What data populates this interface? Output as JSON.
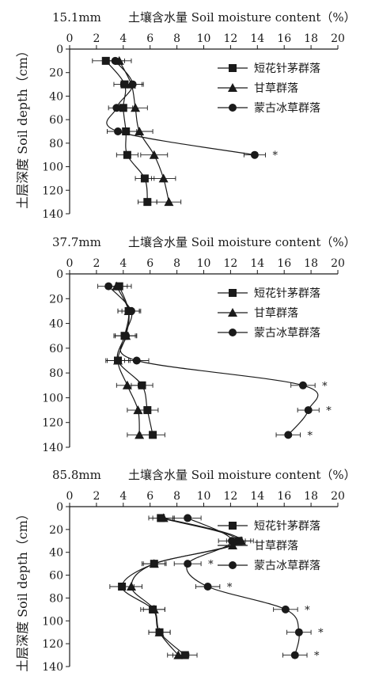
{
  "figure": {
    "y_axis_label": "土层深度 Soil depth（cm）",
    "x_axis_label": "土壤含水量 Soil moisture content（%）"
  },
  "chart_data": [
    {
      "type": "line",
      "title": "15.1mm",
      "xlabel": "土壤含水量 Soil moisture content（%）",
      "ylabel": "土层深度 Soil depth（cm）",
      "xlim": [
        0,
        20
      ],
      "ylim": [
        0,
        140
      ],
      "x_ticks": [
        "0",
        "2",
        "4",
        "6",
        "8",
        "10",
        "12",
        "14",
        "16",
        "18",
        "20"
      ],
      "y_ticks": [
        "0",
        "20",
        "40",
        "60",
        "80",
        "100",
        "120",
        "140"
      ],
      "y_reversed": true,
      "legend_position": "top-right",
      "series": [
        {
          "name": "短花针茅群落",
          "marker": "square",
          "points": [
            [
              2.7,
              10
            ],
            [
              4.1,
              30
            ],
            [
              4.0,
              50
            ],
            [
              4.2,
              70
            ],
            [
              4.3,
              90
            ],
            [
              5.6,
              110
            ],
            [
              5.8,
              130
            ]
          ],
          "errors": [
            1.0,
            0.8,
            0.7,
            0.8,
            0.8,
            0.7,
            0.7
          ]
        },
        {
          "name": "甘草群落",
          "marker": "triangle",
          "points": [
            [
              3.7,
              10
            ],
            [
              4.6,
              30
            ],
            [
              4.9,
              50
            ],
            [
              5.2,
              70
            ],
            [
              6.3,
              90
            ],
            [
              7.0,
              110
            ],
            [
              7.4,
              130
            ]
          ],
          "errors": [
            0.9,
            0.8,
            0.9,
            1.0,
            1.0,
            0.9,
            0.9
          ]
        },
        {
          "name": "蒙古冰草群落",
          "marker": "circle",
          "points": [
            [
              3.4,
              10
            ],
            [
              4.7,
              30
            ],
            [
              3.5,
              50
            ],
            [
              3.6,
              70
            ],
            [
              13.8,
              90
            ]
          ],
          "errors": [
            0.7,
            0.8,
            0.6,
            0.8,
            0.8
          ],
          "significance": [
            "",
            "",
            "",
            "",
            "*"
          ]
        }
      ]
    },
    {
      "type": "line",
      "title": "37.7mm",
      "xlabel": "土壤含水量 Soil moisture content（%）",
      "ylabel": "土层深度 Soil depth（cm）",
      "xlim": [
        0,
        20
      ],
      "ylim": [
        0,
        140
      ],
      "x_ticks": [
        "0",
        "2",
        "4",
        "6",
        "8",
        "10",
        "12",
        "14",
        "16",
        "18",
        "20"
      ],
      "y_ticks": [
        "0",
        "20",
        "40",
        "60",
        "80",
        "100",
        "120",
        "140"
      ],
      "y_reversed": true,
      "legend_position": "top-right",
      "series": [
        {
          "name": "短花针茅群落",
          "marker": "square",
          "points": [
            [
              3.7,
              10
            ],
            [
              4.4,
              30
            ],
            [
              4.1,
              50
            ],
            [
              3.6,
              70
            ],
            [
              5.4,
              90
            ],
            [
              5.8,
              110
            ],
            [
              6.2,
              130
            ]
          ],
          "errors": [
            0.9,
            0.8,
            0.8,
            0.9,
            0.8,
            0.8,
            0.9
          ]
        },
        {
          "name": "甘草群落",
          "marker": "triangle",
          "points": [
            [
              3.5,
              10
            ],
            [
              4.4,
              30
            ],
            [
              4.2,
              50
            ],
            [
              3.6,
              70
            ],
            [
              4.3,
              90
            ],
            [
              5.1,
              110
            ],
            [
              5.2,
              130
            ]
          ],
          "errors": [
            0.8,
            0.8,
            0.8,
            0.8,
            0.8,
            0.8,
            0.9
          ]
        },
        {
          "name": "蒙古冰草群落",
          "marker": "circle",
          "points": [
            [
              2.9,
              10
            ],
            [
              4.6,
              30
            ],
            [
              4.2,
              50
            ],
            [
              5.0,
              70
            ],
            [
              17.4,
              90
            ],
            [
              17.8,
              110
            ],
            [
              16.3,
              130
            ]
          ],
          "errors": [
            0.8,
            0.7,
            0.8,
            0.9,
            0.9,
            0.8,
            0.9
          ],
          "significance": [
            "",
            "",
            "",
            "",
            "*",
            "*",
            "*"
          ]
        }
      ]
    },
    {
      "type": "line",
      "title": "85.8mm",
      "xlabel": "土壤含水量 Soil moisture content（%）",
      "ylabel": "土层深度 Soil depth（cm）",
      "xlim": [
        0,
        20
      ],
      "ylim": [
        0,
        140
      ],
      "x_ticks": [
        "0",
        "2",
        "4",
        "6",
        "8",
        "10",
        "12",
        "14",
        "16",
        "18",
        "20"
      ],
      "y_ticks": [
        "0",
        "20",
        "40",
        "60",
        "80",
        "100",
        "120",
        "140"
      ],
      "y_reversed": true,
      "legend_position": "top-right",
      "series": [
        {
          "name": "短花针茅群落",
          "marker": "square",
          "points": [
            [
              6.8,
              10
            ],
            [
              12.6,
              30
            ],
            [
              6.3,
              50
            ],
            [
              3.9,
              70
            ],
            [
              6.2,
              90
            ],
            [
              6.7,
              110
            ],
            [
              8.6,
              130
            ]
          ],
          "errors": [
            0.9,
            0.9,
            0.9,
            0.9,
            0.9,
            0.8,
            0.9
          ]
        },
        {
          "name": "甘草群落",
          "marker": "triangle",
          "points": [
            [
              7.0,
              10
            ],
            [
              12.8,
              30
            ],
            [
              6.3,
              50
            ],
            [
              4.6,
              70
            ],
            [
              6.3,
              90
            ],
            [
              6.7,
              110
            ],
            [
              8.1,
              130
            ]
          ],
          "errors": [
            0.8,
            0.9,
            0.8,
            0.8,
            0.8,
            0.8,
            0.8
          ]
        },
        {
          "name": "蒙古冰草群落",
          "marker": "circle",
          "points": [
            [
              8.8,
              10
            ],
            [
              12.1,
              30
            ],
            [
              8.8,
              50
            ],
            [
              10.3,
              70
            ],
            [
              16.1,
              90
            ],
            [
              17.1,
              110
            ],
            [
              16.8,
              130
            ]
          ],
          "errors": [
            1.0,
            1.0,
            1.0,
            0.9,
            0.9,
            0.9,
            0.9
          ],
          "significance": [
            "",
            "",
            "*",
            "*",
            "*",
            "*",
            "*"
          ]
        }
      ]
    }
  ]
}
